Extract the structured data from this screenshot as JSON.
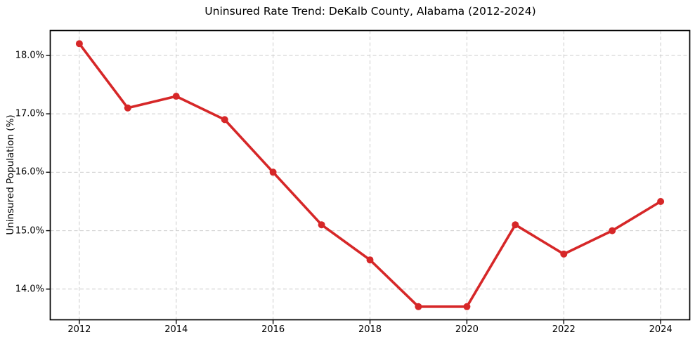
{
  "chart_data": {
    "type": "line",
    "title": "Uninsured Rate Trend: DeKalb County, Alabama (2012-2024)",
    "xlabel": "",
    "ylabel": "Uninsured Population (%)",
    "x": [
      2012,
      2013,
      2014,
      2015,
      2016,
      2017,
      2018,
      2019,
      2020,
      2021,
      2022,
      2023,
      2024
    ],
    "series": [
      {
        "name": "Uninsured Population (%)",
        "values": [
          18.2,
          17.1,
          17.3,
          16.9,
          16.0,
          15.1,
          14.5,
          13.7,
          13.7,
          15.1,
          14.6,
          15.0,
          15.5
        ],
        "color": "#d62728",
        "marker": "circle"
      }
    ],
    "xlim": [
      2011.4,
      2024.6
    ],
    "ylim": [
      13.475,
      18.425
    ],
    "x_ticks": [
      2012,
      2014,
      2016,
      2018,
      2020,
      2022,
      2024
    ],
    "x_tick_labels": [
      "2012",
      "2014",
      "2016",
      "2018",
      "2020",
      "2022",
      "2024"
    ],
    "y_ticks": [
      14,
      15,
      16,
      17,
      18
    ],
    "y_tick_labels": [
      "14.0%",
      "15.0%",
      "16.0%",
      "17.0%",
      "18.0%"
    ],
    "grid": "both",
    "grid_line_style": "dashed",
    "legend": false,
    "colors": {
      "line": "#d62728",
      "grid": "#cccccc",
      "axis": "#000000",
      "text": "#000000",
      "background": "#ffffff"
    }
  }
}
